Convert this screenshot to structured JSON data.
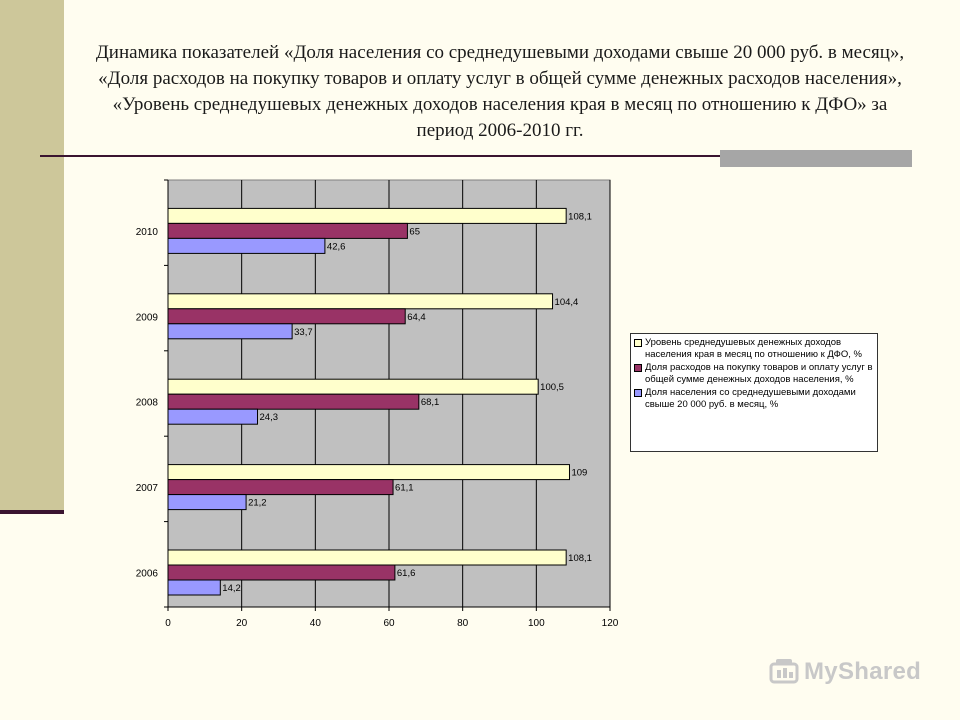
{
  "title": "Динамика показателей «Доля населения со среднедушевыми доходами свыше 20 000 руб. в месяц», «Доля расходов на покупку товаров и оплату услуг в общей сумме денежных расходов населения», «Уровень среднедушевых денежных доходов населения края в месяц по отношению к ДФО» за период 2006-2010 гг.",
  "watermark": "MyShared",
  "colors": {
    "plot_background": "#c0c0c0",
    "series_income_level": "#ffffcc",
    "series_expense_share": "#993366",
    "series_population_share": "#9999ff",
    "background": "#fffdf0",
    "accent_band": "#cdc79a"
  },
  "chart_data": {
    "type": "bar",
    "orientation": "horizontal",
    "categories": [
      "2010",
      "2009",
      "2008",
      "2007",
      "2006"
    ],
    "series": [
      {
        "name": "Уровень среднедушевых денежных доходов населения края в месяц по отношению к ДФО, %",
        "values": [
          108.1,
          104.4,
          100.5,
          109,
          108.1
        ],
        "labels": [
          "108,1",
          "104,4",
          "100,5",
          "109",
          "108,1"
        ]
      },
      {
        "name": "Доля расходов на покупку товаров и оплату услуг в общей сумме денежных доходов населения, %",
        "values": [
          65,
          64.4,
          68.1,
          61.1,
          61.6
        ],
        "labels": [
          "65",
          "64,4",
          "68,1",
          "61,1",
          "61,6"
        ]
      },
      {
        "name": "Доля населения со среднедушевыми доходами свыше 20 000 руб. в месяц, %",
        "values": [
          42.6,
          33.7,
          24.3,
          21.2,
          14.2
        ],
        "labels": [
          "42,6",
          "33,7",
          "24,3",
          "21,2",
          "14,2"
        ]
      }
    ],
    "xlim": [
      0,
      120
    ],
    "xticks": [
      "0",
      "20",
      "40",
      "60",
      "80",
      "100",
      "120"
    ],
    "grid": true,
    "legend_position": "right"
  }
}
